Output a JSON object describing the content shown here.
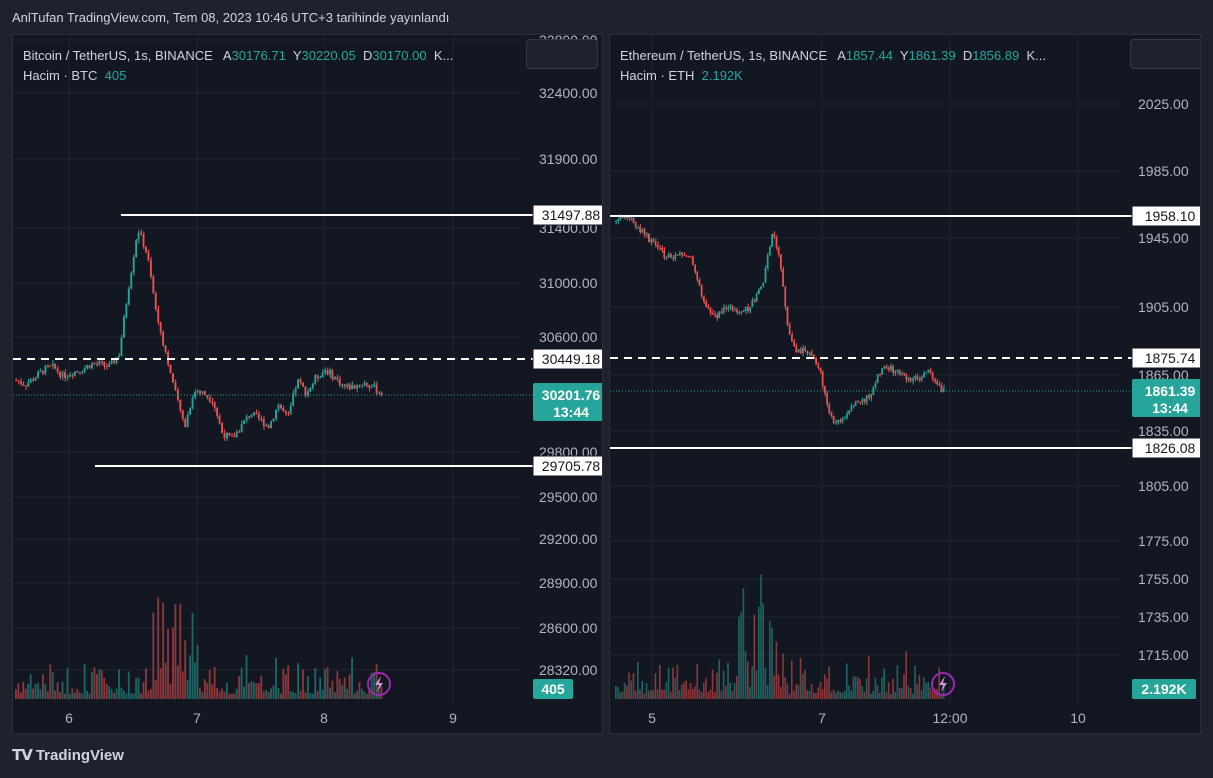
{
  "header": {
    "published_text": "AnlTufan TradingView.com, Tem 08, 2023 10:46 UTC+3 tarihinde yayınlandı"
  },
  "footer": {
    "brand": "TradingView"
  },
  "colors": {
    "up": "#26a69a",
    "down": "#ef5350",
    "bg": "#131722",
    "grid": "#1f2430"
  },
  "chart_data": [
    {
      "type": "candlestick",
      "symbol": "Bitcoin / TetherUS, 1s, BINANCE",
      "ohlc": {
        "a_label": "A",
        "a": "30176.71",
        "y_label": "Y",
        "y": "30220.05",
        "d_label": "D",
        "d": "30170.00",
        "more": "K..."
      },
      "volume_label": "Hacim · BTC",
      "volume_value": "405",
      "price_ticks": [
        "32800.00",
        "32400.00",
        "31900.00",
        "31400.00",
        "31000.00",
        "30600.00",
        "29800.00",
        "29500.00",
        "29200.00",
        "28900.00",
        "28600.00",
        "28320.00"
      ],
      "x_ticks": [
        "6",
        "7",
        "8",
        "9"
      ],
      "levels": [
        {
          "label": "31497.88",
          "style": "solid"
        },
        {
          "label": "30449.18",
          "style": "dashed"
        },
        {
          "label": "29705.78",
          "style": "solid"
        }
      ],
      "last_price": "30201.76",
      "countdown": "13:44",
      "volume_badge": "405",
      "close_path": [
        30300,
        30270,
        30320,
        30380,
        30400,
        30330,
        30360,
        30380,
        30420,
        30420,
        30400,
        30500,
        31000,
        31450,
        31250,
        30800,
        30500,
        30200,
        29950,
        30220,
        30200,
        30150,
        29900,
        29850,
        29950,
        30050,
        30000,
        29950,
        30120,
        30000,
        30300,
        30200,
        30320,
        30380,
        30320,
        30250,
        30250,
        30280,
        30250,
        30200
      ]
    },
    {
      "type": "candlestick",
      "symbol": "Ethereum / TetherUS, 1s, BINANCE",
      "ohlc": {
        "a_label": "A",
        "a": "1857.44",
        "y_label": "Y",
        "y": "1861.39",
        "d_label": "D",
        "d": "1856.89",
        "more": "K..."
      },
      "volume_label": "Hacim · ETH",
      "volume_value": "2.192K",
      "price_ticks": [
        "2025.00",
        "1985.00",
        "1945.00",
        "1905.00",
        "1865.00",
        "1835.00",
        "1805.00",
        "1775.00",
        "1755.00",
        "1735.00",
        "1715.00"
      ],
      "x_ticks": [
        "5",
        "7",
        "12:00",
        "10"
      ],
      "levels": [
        {
          "label": "1958.10",
          "style": "solid"
        },
        {
          "label": "1875.74",
          "style": "dashed"
        },
        {
          "label": "1826.08",
          "style": "solid"
        }
      ],
      "last_price": "1861.39",
      "countdown": "13:44",
      "volume_badge": "2.192K",
      "close_path": [
        1955,
        1957,
        1955,
        1950,
        1945,
        1940,
        1935,
        1935,
        1938,
        1935,
        1920,
        1905,
        1900,
        1905,
        1905,
        1902,
        1905,
        1910,
        1920,
        1948,
        1935,
        1895,
        1880,
        1882,
        1878,
        1868,
        1845,
        1840,
        1845,
        1850,
        1852,
        1856,
        1868,
        1872,
        1870,
        1868,
        1864,
        1866,
        1870,
        1862,
        1858
      ]
    }
  ]
}
